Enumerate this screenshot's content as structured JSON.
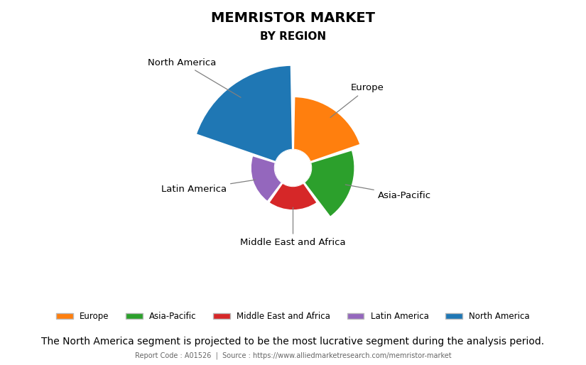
{
  "chart_data": {
    "type": "rose",
    "title": "MEMRISTOR MARKET",
    "subtitle": "BY REGION",
    "categories": [
      "North America",
      "Europe",
      "Asia-Pacific",
      "Middle East and Africa",
      "Latin America"
    ],
    "values": [
      35,
      22,
      18,
      10,
      10
    ],
    "legend_order": [
      "Europe",
      "Asia-Pacific",
      "Middle East and Africa",
      "Latin America",
      "North America"
    ],
    "legend": "lower center",
    "grid": false,
    "tick_labels": false,
    "caption": "The North America segment is projected to be the most lucrative segment during the analysis period.",
    "footer": "Report Code : A01526  |  Source : https://www.alliedmarketresearch.com/memristor-market"
  }
}
